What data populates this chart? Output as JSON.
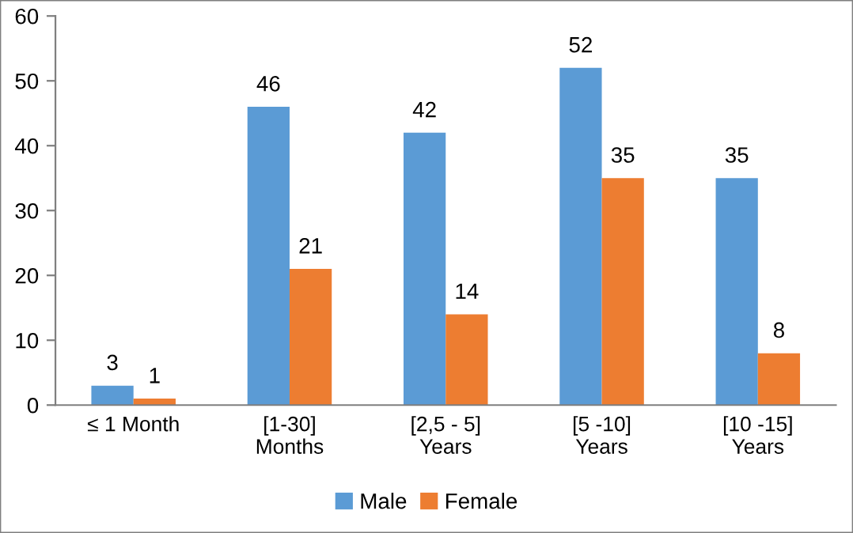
{
  "chart_data": {
    "type": "bar",
    "categories": [
      "≤ 1 Month",
      "[1-30]\nMonths",
      "[2,5 - 5]\nYears",
      "[5 -10]\nYears",
      "[10 -15]\nYears"
    ],
    "series": [
      {
        "name": "Male",
        "color": "#5b9bd5",
        "values": [
          3,
          46,
          42,
          52,
          35
        ]
      },
      {
        "name": "Female",
        "color": "#ed7d31",
        "values": [
          1,
          21,
          14,
          35,
          8
        ]
      }
    ],
    "ylim": [
      0,
      60
    ],
    "yticks": [
      0,
      10,
      20,
      30,
      40,
      50,
      60
    ],
    "data_labels": true,
    "legend": "bottom",
    "grid": false
  }
}
